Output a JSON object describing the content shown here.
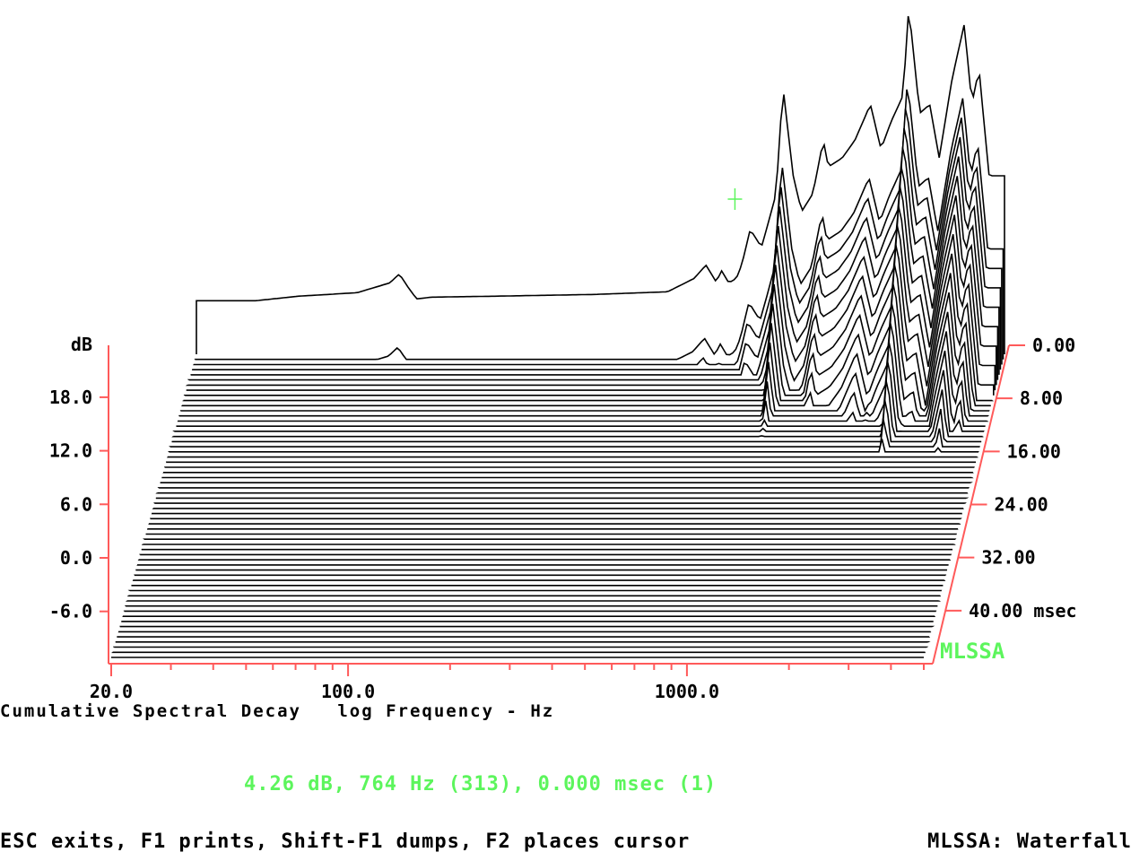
{
  "chart_data": {
    "type": "waterfall",
    "title": "Cumulative Spectral Decay",
    "xlabel": "log Frequency - Hz",
    "ylabel": "dB",
    "zlabel_unit": "msec",
    "brand": "MLSSA",
    "x_scale": "log",
    "xlim": [
      20,
      5000
    ],
    "x_tick_labels": [
      "20.0",
      "100.0",
      "1000.0"
    ],
    "x_tick_values": [
      20,
      100,
      1000
    ],
    "x_minor_ticks": [
      30,
      40,
      50,
      60,
      70,
      80,
      90,
      200,
      300,
      400,
      500,
      600,
      700,
      800,
      900,
      2000,
      3000,
      4000,
      5000
    ],
    "ylim": [
      -12,
      24
    ],
    "y_tick_labels": [
      "18.0",
      "12.0",
      "6.0",
      "0.0",
      "-6.0"
    ],
    "y_tick_values": [
      18,
      12,
      6,
      0,
      -6
    ],
    "time_tick_labels": [
      "0.00",
      "8.00",
      "16.00",
      "24.00",
      "32.00",
      "40.00"
    ],
    "time_tick_values": [
      0,
      8,
      16,
      24,
      32,
      40
    ],
    "time_range_msec": [
      0,
      48
    ],
    "slice_count": 60,
    "first_slice_response": {
      "frequency_hz": [
        30,
        40,
        60,
        75,
        80,
        85,
        90,
        100,
        150,
        300,
        500,
        600,
        650,
        700,
        720,
        760,
        800,
        830,
        880,
        950,
        1000,
        1050,
        1100,
        1180,
        1250,
        1350,
        1450,
        1500,
        1650,
        1800,
        2000,
        2150,
        2300,
        2500,
        2600,
        2800,
        3000,
        3200,
        3500,
        3800,
        4000,
        4200,
        4500
      ],
      "level_db": [
        0.0,
        0.5,
        0.9,
        2.0,
        3.0,
        1.5,
        0.2,
        0.4,
        0.5,
        0.7,
        1.0,
        2.5,
        4.0,
        2.0,
        3.5,
        2.0,
        2.5,
        4.0,
        8.0,
        6.0,
        9.0,
        12.0,
        24.0,
        14.0,
        10.0,
        12.0,
        18.0,
        15.0,
        16.0,
        18.0,
        22.0,
        17.0,
        20.0,
        23.0,
        33.0,
        21.0,
        22.0,
        16.0,
        25.0,
        31.0,
        22.0,
        26.0,
        14.0
      ]
    },
    "resonances_hz": [
      85,
      700,
      1100,
      2200,
      2800,
      4000
    ],
    "cursor": {
      "level_db": 4.26,
      "frequency_hz": 764,
      "bin": 313,
      "time_msec": 0.0,
      "slice": 1
    }
  },
  "readout": "4.26 dB, 764 Hz (313), 0.000 msec (1)",
  "help_text": "ESC exits, F1 prints, Shift-F1 dumps, F2 places cursor",
  "mode_text": "MLSSA: Waterfall",
  "colors": {
    "axis": "#ff5a5a",
    "brand": "#5cf55c",
    "readout": "#5cf55c",
    "trace": "#000000"
  }
}
